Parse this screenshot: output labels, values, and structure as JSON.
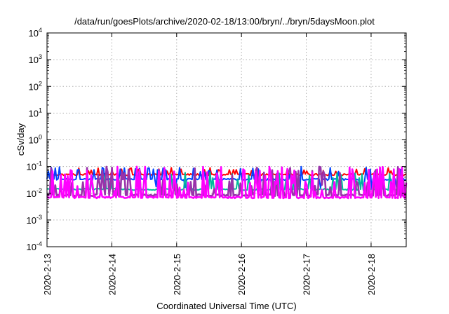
{
  "chart_data": {
    "type": "line",
    "title": "/data/run/goesPlots/archive/2020-02-18/13:00/bryn/../bryn/5daysMoon.plot",
    "xlabel": "Coordinated Universal Time (UTC)",
    "ylabel": "cSv/day",
    "y_scale": "log",
    "ylim": [
      0.0001,
      10000
    ],
    "xlim": [
      "2020-02-13",
      "2020-02-18T13:00"
    ],
    "x_ticks": [
      "2020-2-13",
      "2020-2-14",
      "2020-2-15",
      "2020-2-16",
      "2020-2-17",
      "2020-2-18"
    ],
    "y_ticks": [
      {
        "base": "10",
        "exp": "-4",
        "value": 0.0001
      },
      {
        "base": "10",
        "exp": "-3",
        "value": 0.001
      },
      {
        "base": "10",
        "exp": "-2",
        "value": 0.01
      },
      {
        "base": "10",
        "exp": "-1",
        "value": 0.1
      },
      {
        "base": "10",
        "exp": "0",
        "value": 1
      },
      {
        "base": "10",
        "exp": "1",
        "value": 10
      },
      {
        "base": "10",
        "exp": "2",
        "value": 100
      },
      {
        "base": "10",
        "exp": "3",
        "value": 1000
      },
      {
        "base": "10",
        "exp": "4",
        "value": 10000
      }
    ],
    "grid": true,
    "legend": "none",
    "series": [
      {
        "color": "#ff0000",
        "baseline": 0.05,
        "spike_peak": 0.09
      },
      {
        "color": "#0044ff",
        "baseline": 0.033,
        "spike_peak": 0.1,
        "dip_low": 0.012
      },
      {
        "color": "#00bb99",
        "baseline": 0.014,
        "spike_peak": 0.06
      },
      {
        "color": "#9933aa",
        "baseline": 0.0085,
        "spike_peak": 0.1
      },
      {
        "color": "#ff00ff",
        "baseline": 0.007,
        "spike_peak": 0.1
      }
    ]
  }
}
